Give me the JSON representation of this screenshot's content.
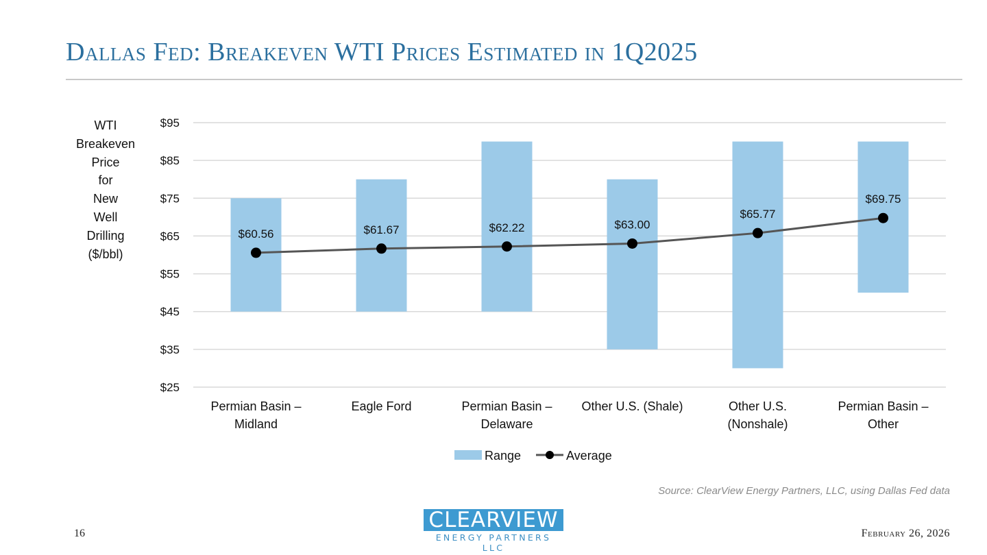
{
  "header": {
    "title": "Dallas Fed: Breakeven WTI Prices Estimated in 1Q2025"
  },
  "chart_data": {
    "type": "bar",
    "title": "Dallas Fed: Breakeven WTI Prices Estimated in 1Q2025",
    "ylabel_lines": [
      "WTI",
      "Breakeven",
      "Price",
      "for",
      "New",
      "Well",
      "Drilling",
      "($/bbl)"
    ],
    "xlabel": "",
    "ylim": [
      25,
      95
    ],
    "yticks": [
      25,
      35,
      45,
      55,
      65,
      75,
      85,
      95
    ],
    "ytick_labels": [
      "$25",
      "$35",
      "$45",
      "$55",
      "$65",
      "$75",
      "$85",
      "$95"
    ],
    "grid": true,
    "categories": [
      [
        "Permian Basin –",
        "Midland"
      ],
      [
        "Eagle Ford"
      ],
      [
        "Permian Basin –",
        "Delaware"
      ],
      [
        "Other U.S. (Shale)"
      ],
      [
        "Other U.S.",
        "(Nonshale)"
      ],
      [
        "Permian Basin –",
        "Other"
      ]
    ],
    "series": [
      {
        "name": "Range",
        "type": "floating-bar",
        "color": "#9ccae8",
        "low": [
          45,
          45,
          45,
          35,
          30,
          50
        ],
        "high": [
          75,
          80,
          90,
          80,
          90,
          90
        ]
      },
      {
        "name": "Average",
        "type": "line",
        "color": "#555555",
        "marker_color": "#000000",
        "values": [
          60.56,
          61.67,
          62.22,
          63.0,
          65.77,
          69.75
        ],
        "labels": [
          "$60.56",
          "$61.67",
          "$62.22",
          "$63.00",
          "$65.77",
          "$69.75"
        ]
      }
    ],
    "legend": [
      "Range",
      "Average"
    ],
    "legend_position": "bottom"
  },
  "footer": {
    "source": "Source: ClearView Energy Partners, LLC, using Dallas Fed data",
    "page_number": "16",
    "date": "February 26, 2026",
    "logo_top": "CLEARVIEW",
    "logo_bottom": "ENERGY PARTNERS LLC"
  }
}
